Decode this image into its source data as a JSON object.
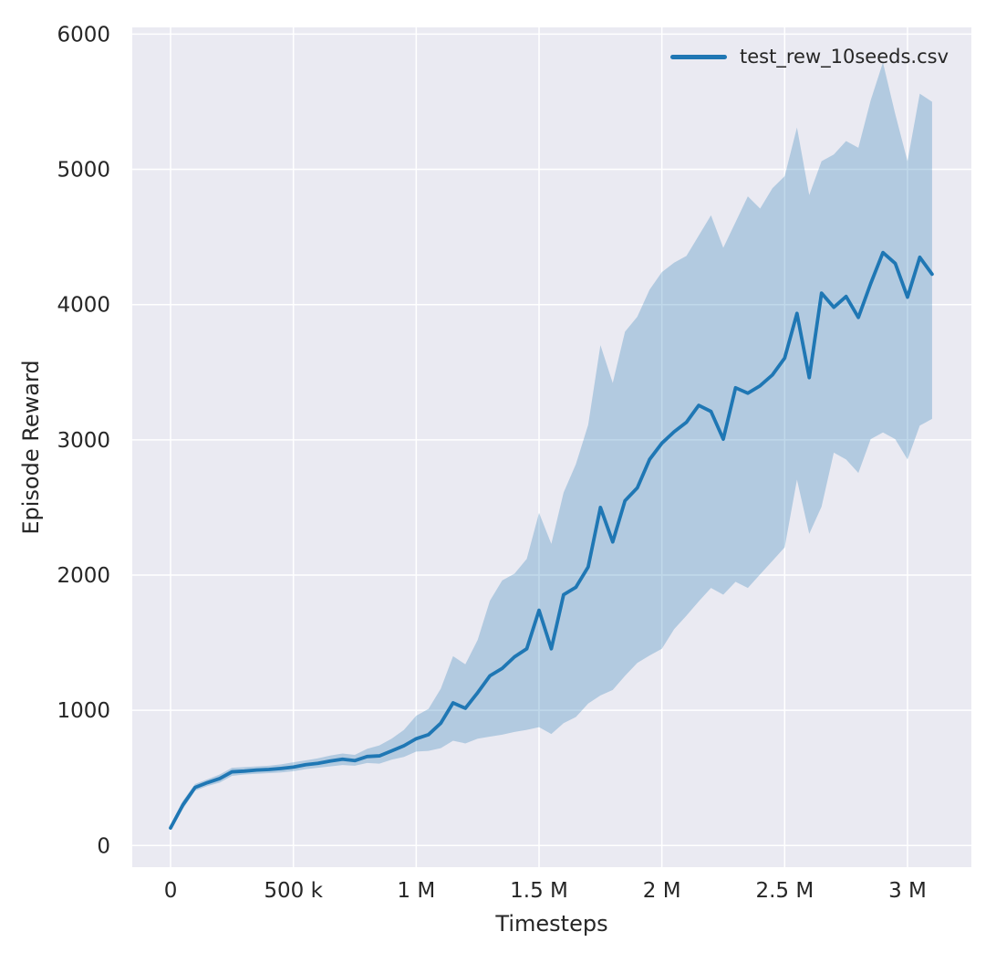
{
  "colors": {
    "figure_background": "#ffffff",
    "plot_background": "#eaeaf2",
    "grid": "#ffffff",
    "text": "#262626",
    "line": "#1f77b4",
    "band": "#1f77b4",
    "band_opacity": 0.28
  },
  "chart_data": {
    "type": "line",
    "title": "",
    "xlabel": "Timesteps",
    "ylabel": "Episode Reward",
    "grid": true,
    "legend_position": "upper right",
    "xlim": [
      -156000,
      3260000
    ],
    "ylim": [
      -160,
      6050
    ],
    "x_tick_values": [
      0,
      500000,
      1000000,
      1500000,
      2000000,
      2500000,
      3000000
    ],
    "x_tick_labels": [
      "0",
      "500 k",
      "1 M",
      "1.5 M",
      "2 M",
      "2.5 M",
      "3 M"
    ],
    "y_tick_values": [
      0,
      1000,
      2000,
      3000,
      4000,
      5000,
      6000
    ],
    "y_tick_labels": [
      "0",
      "1000",
      "2000",
      "3000",
      "4000",
      "5000",
      "6000"
    ],
    "series": [
      {
        "name": "test_rew_10seeds.csv",
        "color": "#1f77b4",
        "x": [
          0,
          50000,
          100000,
          150000,
          200000,
          250000,
          300000,
          350000,
          400000,
          450000,
          500000,
          550000,
          600000,
          650000,
          700000,
          750000,
          800000,
          850000,
          900000,
          950000,
          1000000,
          1050000,
          1100000,
          1150000,
          1200000,
          1250000,
          1300000,
          1350000,
          1400000,
          1450000,
          1500000,
          1550000,
          1600000,
          1650000,
          1700000,
          1750000,
          1800000,
          1850000,
          1900000,
          1950000,
          2000000,
          2050000,
          2100000,
          2150000,
          2200000,
          2250000,
          2300000,
          2350000,
          2400000,
          2450000,
          2500000,
          2550000,
          2600000,
          2650000,
          2700000,
          2750000,
          2800000,
          2850000,
          2900000,
          2950000,
          3000000,
          3050000,
          3100000
        ],
        "mean": [
          130,
          300,
          430,
          465,
          495,
          545,
          550,
          558,
          562,
          570,
          580,
          598,
          608,
          625,
          638,
          628,
          658,
          663,
          700,
          738,
          790,
          820,
          905,
          1055,
          1015,
          1130,
          1255,
          1310,
          1395,
          1455,
          1740,
          1455,
          1855,
          1910,
          2060,
          2500,
          2245,
          2550,
          2645,
          2855,
          2975,
          3060,
          3130,
          3255,
          3210,
          3005,
          3385,
          3345,
          3400,
          3480,
          3605,
          3935,
          3460,
          4085,
          3980,
          4060,
          3905,
          4155,
          4385,
          4305,
          4055,
          4350,
          4225
        ],
        "lower": [
          115,
          270,
          405,
          440,
          465,
          515,
          525,
          530,
          535,
          540,
          550,
          565,
          575,
          585,
          595,
          590,
          610,
          605,
          635,
          655,
          695,
          700,
          720,
          775,
          755,
          790,
          805,
          820,
          840,
          855,
          875,
          825,
          905,
          950,
          1050,
          1110,
          1150,
          1255,
          1350,
          1405,
          1455,
          1600,
          1700,
          1805,
          1905,
          1855,
          1950,
          1905,
          2005,
          2105,
          2205,
          2705,
          2305,
          2505,
          2905,
          2855,
          2755,
          3005,
          3055,
          3005,
          2855,
          3105,
          3155
        ],
        "upper": [
          150,
          330,
          455,
          490,
          525,
          575,
          580,
          585,
          590,
          600,
          615,
          630,
          645,
          665,
          680,
          670,
          715,
          740,
          790,
          855,
          960,
          1010,
          1160,
          1400,
          1340,
          1520,
          1810,
          1960,
          2010,
          2120,
          2460,
          2230,
          2610,
          2820,
          3110,
          3700,
          3420,
          3800,
          3910,
          4110,
          4240,
          4310,
          4360,
          4510,
          4660,
          4420,
          4610,
          4800,
          4710,
          4860,
          4950,
          5310,
          4810,
          5060,
          5110,
          5210,
          5160,
          5510,
          5790,
          5410,
          5060,
          5560,
          5500
        ]
      }
    ]
  }
}
